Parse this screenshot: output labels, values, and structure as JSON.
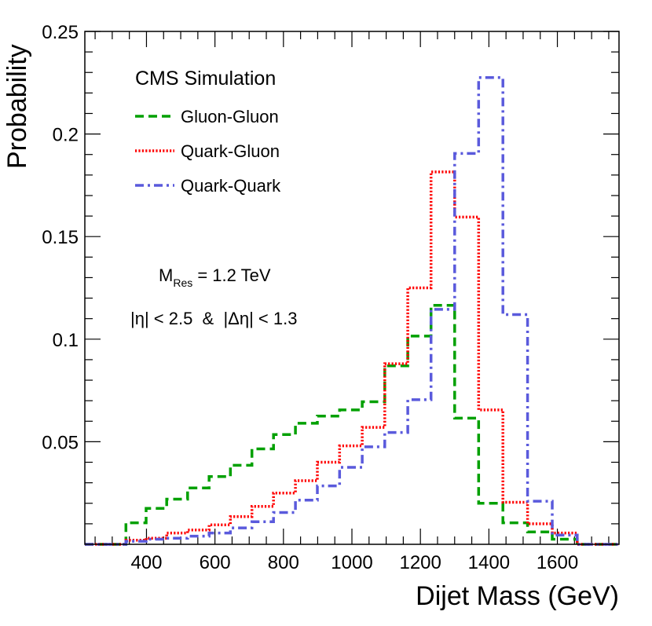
{
  "chart_data": {
    "type": "line",
    "title": "",
    "xlabel": "Dijet Mass (GeV)",
    "ylabel": "Probability",
    "xlim": [
      220,
      1780
    ],
    "ylim": [
      0,
      0.25
    ],
    "x_ticks": [
      400,
      600,
      800,
      1000,
      1200,
      1400,
      1600
    ],
    "x_tick_labels": [
      "400",
      "600",
      "800",
      "1000",
      "1200",
      "1400",
      "1600"
    ],
    "y_ticks": [
      0.05,
      0.1,
      0.15,
      0.2,
      0.25
    ],
    "y_tick_labels": [
      "0.05",
      "0.1",
      "0.15",
      "0.2",
      "0.25"
    ],
    "bin_edges": [
      220,
      281,
      340,
      399,
      459,
      520,
      583,
      645,
      708,
      771,
      835,
      899,
      964,
      1030,
      1096,
      1163,
      1231,
      1300,
      1370,
      1441,
      1513,
      1585,
      1658,
      1732,
      1780
    ],
    "series": [
      {
        "name": "Gluon-Gluon",
        "color": "#00a000",
        "dash": "dashed",
        "values": [
          0,
          0,
          0.0105,
          0.0175,
          0.022,
          0.0275,
          0.033,
          0.0385,
          0.0465,
          0.0535,
          0.059,
          0.0625,
          0.0655,
          0.0695,
          0.087,
          0.1015,
          0.1165,
          0.0615,
          0.02,
          0.0105,
          0.006,
          0.0025,
          0,
          0
        ]
      },
      {
        "name": "Quark-Gluon",
        "color": "#ff0000",
        "dash": "dotted",
        "values": [
          0,
          0,
          0.002,
          0.003,
          0.0055,
          0.007,
          0.0095,
          0.0135,
          0.0185,
          0.025,
          0.031,
          0.04,
          0.048,
          0.057,
          0.088,
          0.125,
          0.1815,
          0.1595,
          0.0655,
          0.0205,
          0.01,
          0.0055,
          0,
          0
        ]
      },
      {
        "name": "Quark-Quark",
        "color": "#5a5adc",
        "dash": "dashdot",
        "values": [
          0,
          0,
          0.0015,
          0.0025,
          0.003,
          0.004,
          0.0055,
          0.008,
          0.011,
          0.0155,
          0.0215,
          0.0285,
          0.0375,
          0.0475,
          0.0545,
          0.0705,
          0.1145,
          0.1905,
          0.2275,
          0.112,
          0.021,
          0.0045,
          0,
          0
        ]
      }
    ],
    "legend": {
      "title": "CMS Simulation",
      "placement": "top-left",
      "entries": [
        "Gluon-Gluon",
        "Quark-Gluon",
        "Quark-Quark"
      ]
    },
    "annotations": {
      "mass_main": "M",
      "mass_sub": "Res",
      "mass_value": " = 1.2 TeV",
      "cuts": "|η| < 2.5  &  |Δη| < 1.3"
    }
  }
}
